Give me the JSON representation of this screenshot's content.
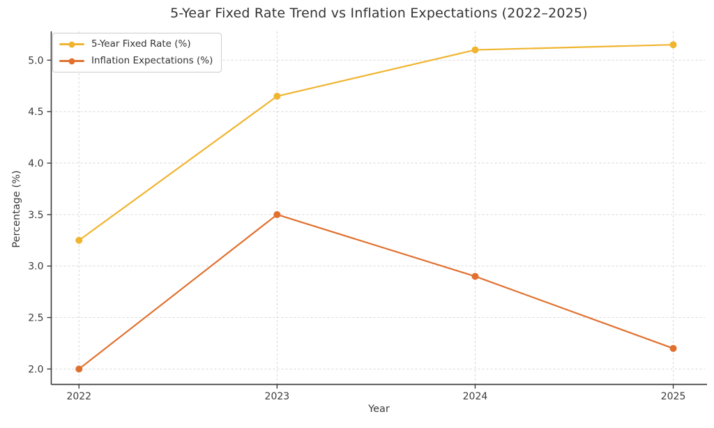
{
  "chart_data": {
    "type": "line",
    "title": "5-Year Fixed Rate Trend vs Inflation Expectations (2022–2025)",
    "xlabel": "Year",
    "ylabel": "Percentage (%)",
    "x": [
      2022,
      2023,
      2024,
      2025
    ],
    "categories": [
      "2022",
      "2023",
      "2024",
      "2025"
    ],
    "series": [
      {
        "name": "5-Year Fixed Rate (%)",
        "values": [
          3.25,
          4.65,
          5.1,
          5.15
        ],
        "color": "#F0B42F"
      },
      {
        "name": "Inflation Expectations (%)",
        "values": [
          2.0,
          3.5,
          2.9,
          2.2
        ],
        "color": "#E1702F"
      }
    ],
    "yticks": [
      2.0,
      2.5,
      3.0,
      3.5,
      4.0,
      4.5,
      5.0
    ],
    "ylim": [
      1.85,
      5.28
    ],
    "xlim": [
      2021.86,
      2025.16
    ],
    "grid": "dashed, both axes",
    "legend_position": "upper left",
    "colors": {
      "grid": "#d7d7d7",
      "spine": "#3b3b3b",
      "tick_text": "#3a3a3a",
      "background": "#ffffff"
    }
  }
}
